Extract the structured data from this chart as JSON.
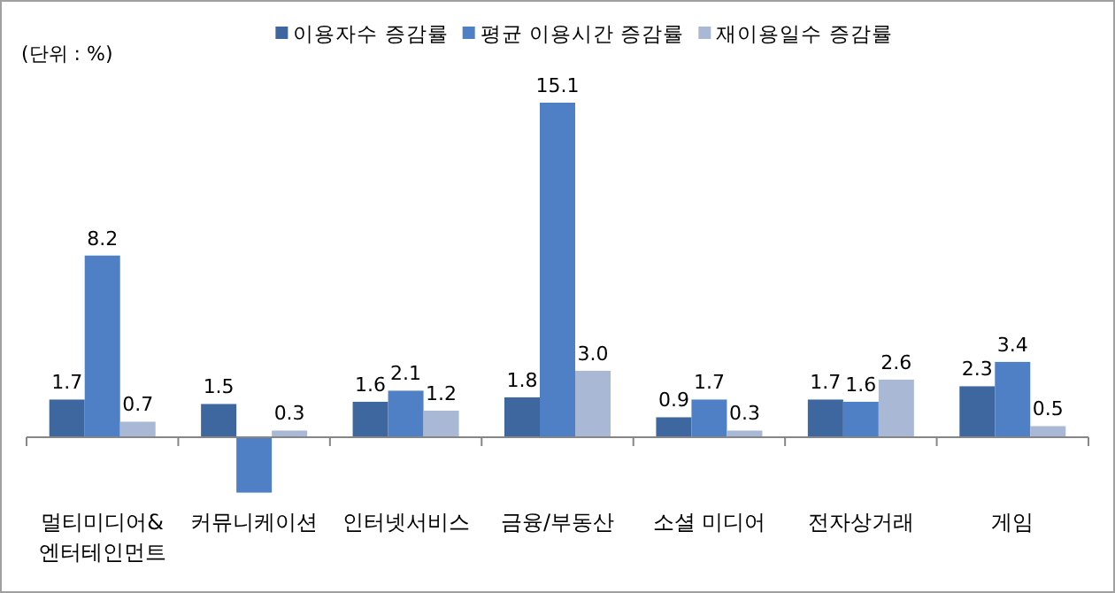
{
  "chart_data": {
    "type": "bar",
    "categories": [
      "멀티미디어&엔터테인먼트",
      "커뮤니케이션",
      "인터넷서비스",
      "금융/부동산",
      "소셜 미디어",
      "전자상거래",
      "게임"
    ],
    "series": [
      {
        "name": "이용자수 증감률",
        "color": "#3e67a0",
        "values": [
          1.7,
          1.5,
          1.6,
          1.8,
          0.9,
          1.7,
          2.3
        ],
        "value_labels": [
          "1.7",
          "1.5",
          "1.6",
          "1.8",
          "0.9",
          "1.7",
          "2.3"
        ]
      },
      {
        "name": "평균 이용시간 증감률",
        "color": "#4f80c6",
        "values": [
          8.2,
          -2.5,
          2.1,
          15.1,
          1.7,
          1.6,
          3.4
        ],
        "value_labels": [
          "8.2",
          null,
          "2.1",
          "15.1",
          "1.7",
          "1.6",
          "3.4"
        ]
      },
      {
        "name": "재이용일수 증감률",
        "color": "#a8b8d5",
        "values": [
          0.7,
          0.3,
          1.2,
          3.0,
          0.3,
          2.6,
          0.5
        ],
        "value_labels": [
          "0.7",
          "0.3",
          "1.2",
          "3.0",
          "0.3",
          "2.6",
          "0.5"
        ]
      }
    ],
    "legend": "top",
    "annotations": [
      "(단위 : %)"
    ]
  }
}
